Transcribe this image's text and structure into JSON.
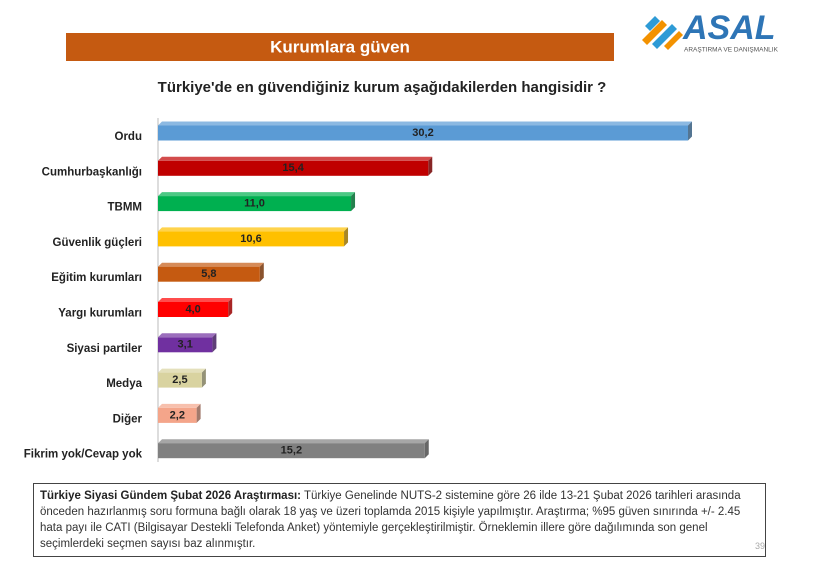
{
  "slide": {
    "header": "Kurumlara güven",
    "logo_name": "ASAL",
    "logo_tagline": "ARAŞTIRMA VE DANIŞMANLIK",
    "note_lead": "Türkiye Siyasi Gündem Şubat 2026 Araştırması:",
    "note_text": "Türkiye Genelinde NUTS-2 sistemine göre 26 ilde 13-21 Şubat 2026 tarihleri arasında önceden hazırlanmış soru formuna bağlı olarak 18 yaş ve üzeri toplamda 2015 kişiyle yapılmıştır. Araştırma; %95 güven sınırında +/- 2.45 hata payı ile CATI (Bilgisayar Destekli Telefonda Anket) yöntemiyle gerçekleştirilmiştir. Örneklemin illere göre dağılımında son genel seçimlerdeki seçmen sayısı baz alınmıştır.",
    "page_number": "39"
  },
  "chart_data": {
    "type": "bar",
    "orientation": "horizontal",
    "title": "Türkiye'de en güvendiğiniz kurum aşağıdakilerden hangisidir ?",
    "categories": [
      "Ordu",
      "Cumhurbaşkanlığı",
      "TBMM",
      "Güvenlik güçleri",
      "Eğitim kurumları",
      "Yargı kurumları",
      "Siyasi partiler",
      "Medya",
      "Diğer",
      "Fikrim yok/Cevap yok"
    ],
    "values": [
      30.2,
      15.4,
      11.0,
      10.6,
      5.8,
      4.0,
      3.1,
      2.5,
      2.2,
      15.2
    ],
    "value_labels": [
      "30,2",
      "15,4",
      "11,0",
      "10,6",
      "5,8",
      "4,0",
      "3,1",
      "2,5",
      "2,2",
      "15,2"
    ],
    "colors": [
      "#5b9bd5",
      "#c00000",
      "#00b050",
      "#ffc000",
      "#c55a11",
      "#ff0000",
      "#7030a0",
      "#d9d3a0",
      "#f4a58a",
      "#808080"
    ]
  }
}
